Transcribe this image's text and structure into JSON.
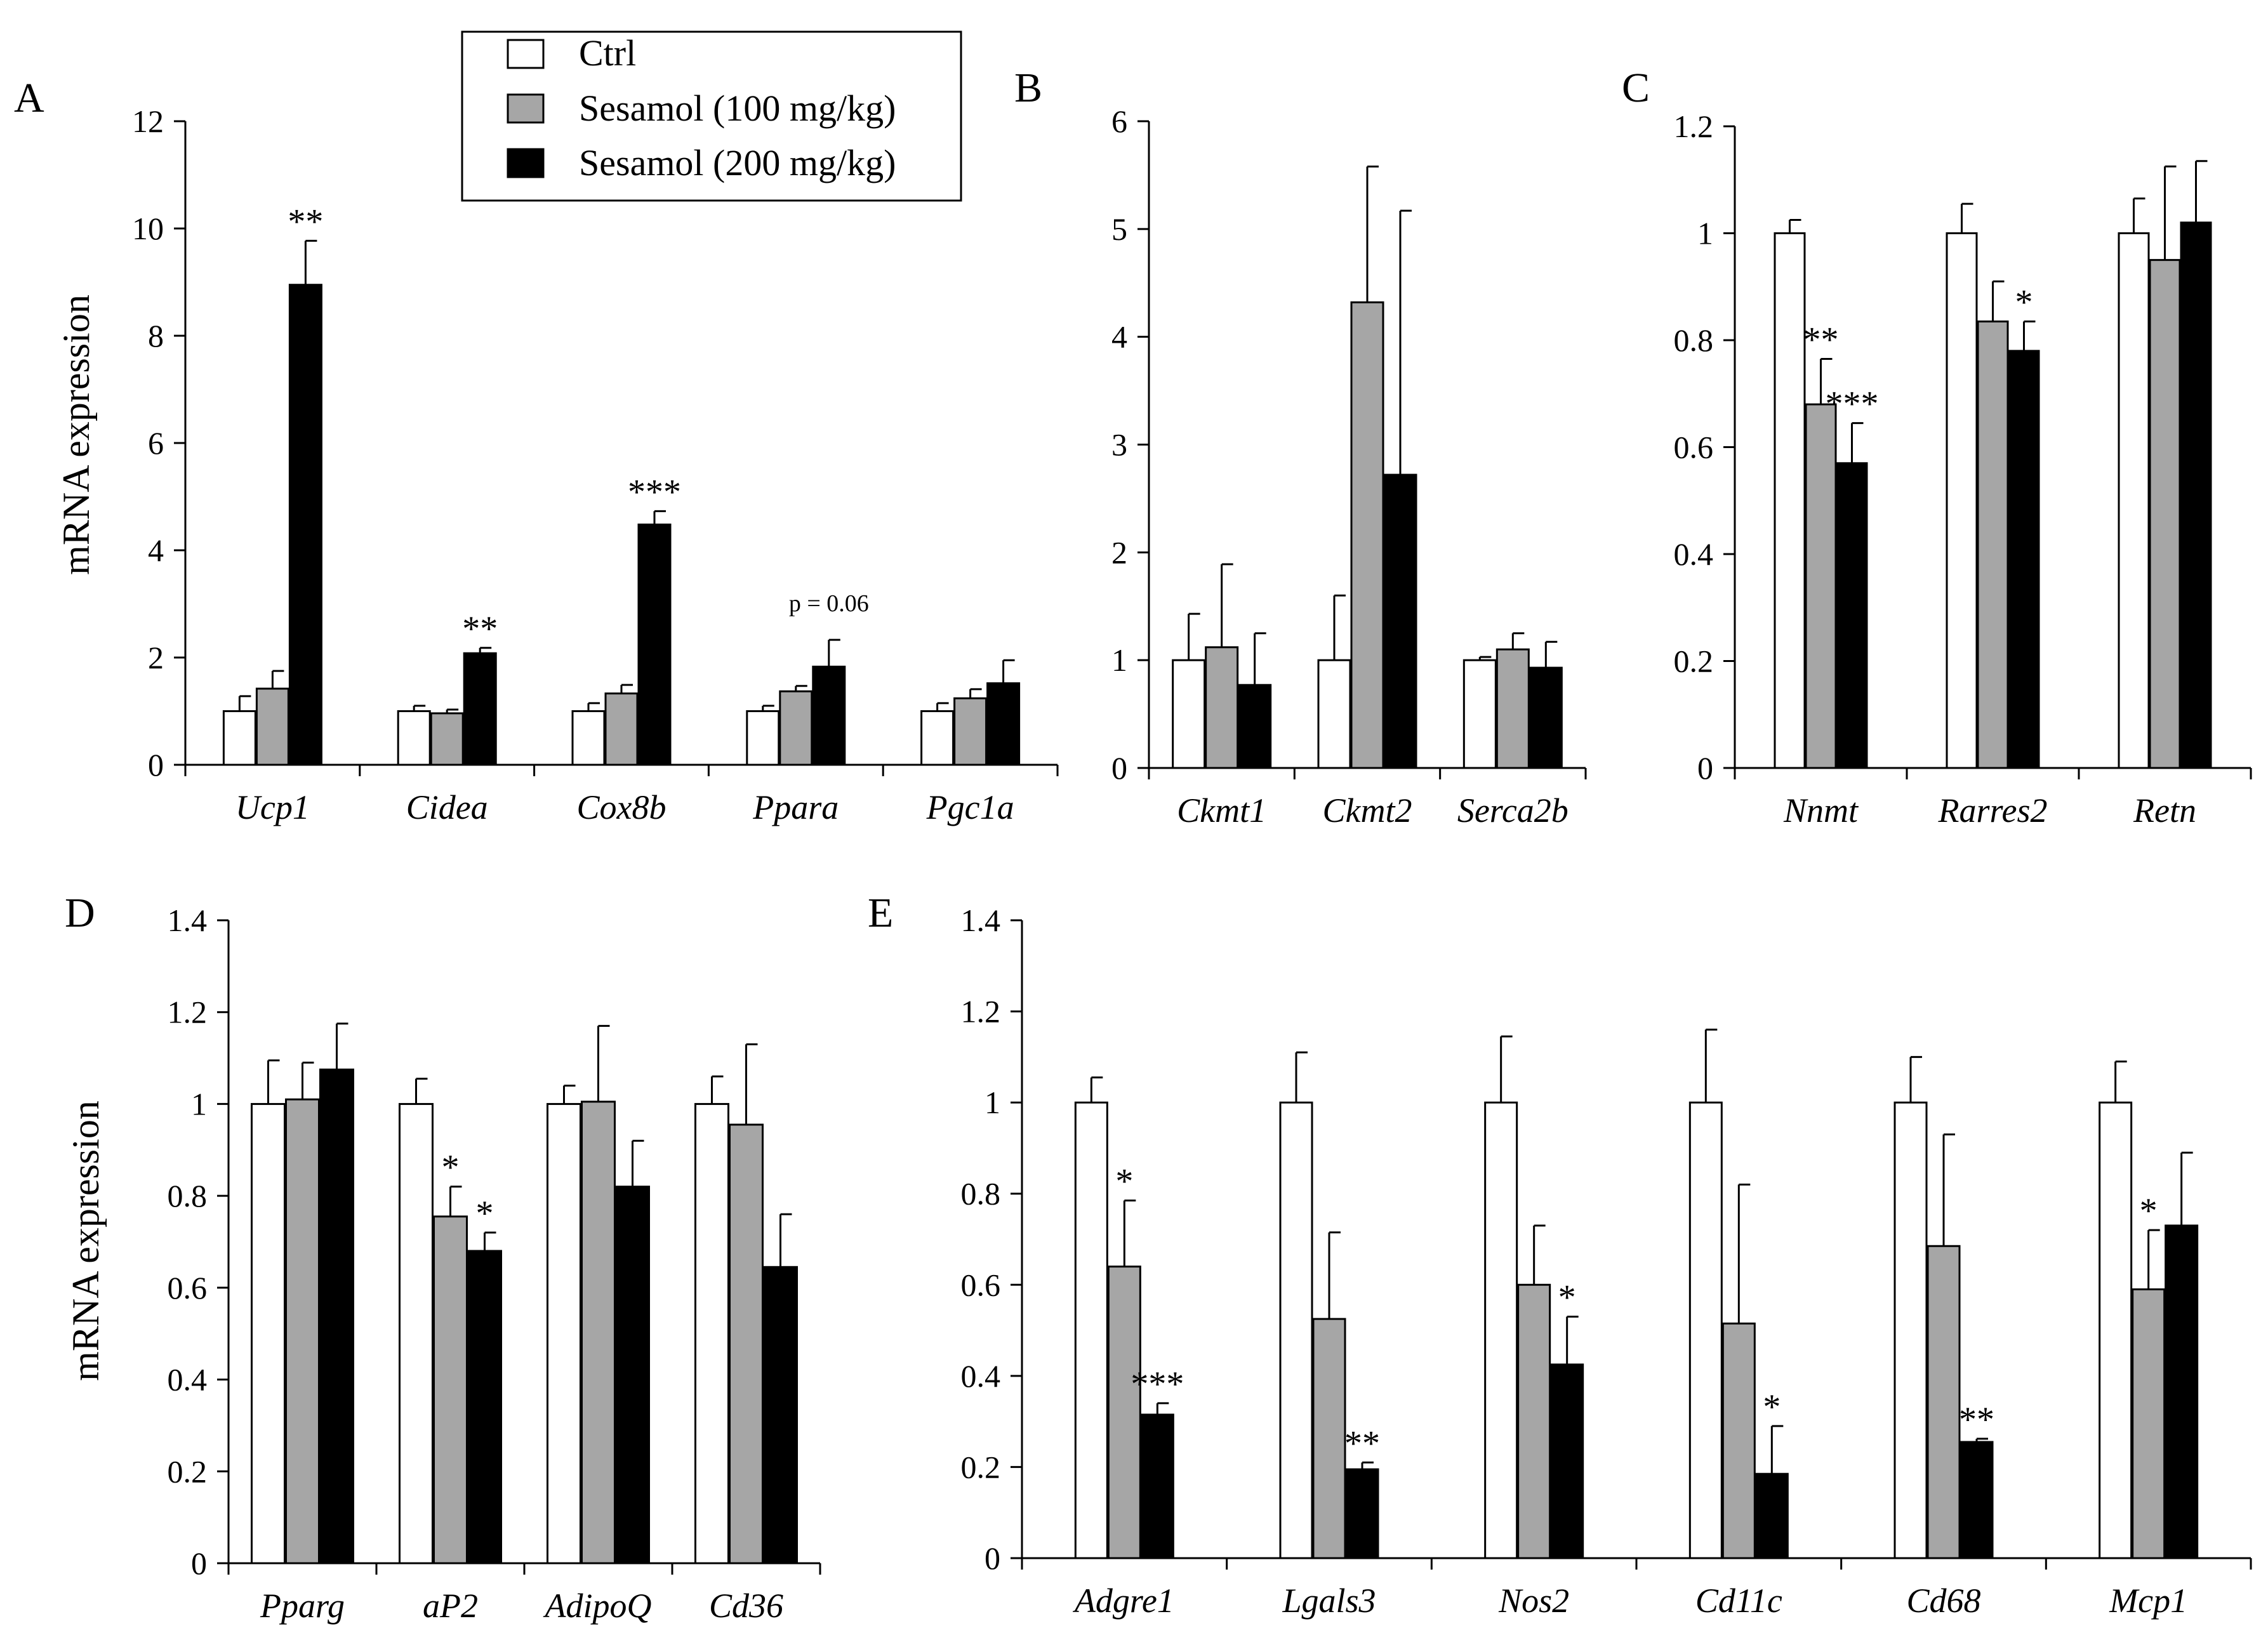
{
  "figure": {
    "ylabel": "mRNA expression",
    "legend": [
      {
        "label": "Ctrl",
        "color": "#ffffff"
      },
      {
        "label": "Sesamol (100 mg/kg)",
        "color": "#a6a6a6"
      },
      {
        "label": "Sesamol (200 mg/kg)",
        "color": "#000000"
      }
    ]
  },
  "chart_data": [
    {
      "panel": "A",
      "type": "bar",
      "ylabel": "mRNA expression",
      "ylim": [
        0,
        12
      ],
      "yticks": [
        "0",
        "2",
        "4",
        "6",
        "8",
        "10",
        "12"
      ],
      "categories": [
        "Ucp1",
        "Cidea",
        "Cox8b",
        "Ppara",
        "Pgc1a"
      ],
      "series": [
        {
          "name": "Ctrl",
          "values": [
            1.0,
            1.0,
            1.0,
            1.0,
            1.0
          ],
          "errors": [
            0.28,
            0.1,
            0.15,
            0.1,
            0.15
          ]
        },
        {
          "name": "Sesamol (100 mg/kg)",
          "values": [
            1.42,
            0.96,
            1.33,
            1.37,
            1.24
          ],
          "errors": [
            0.33,
            0.07,
            0.16,
            0.1,
            0.17
          ]
        },
        {
          "name": "Sesamol (200 mg/kg)",
          "values": [
            8.95,
            2.08,
            4.48,
            1.83,
            1.52
          ],
          "errors": [
            0.82,
            0.1,
            0.25,
            0.5,
            0.43
          ]
        }
      ],
      "annotations": [
        {
          "category": 0,
          "series": 2,
          "text": "**"
        },
        {
          "category": 1,
          "series": 2,
          "text": "**"
        },
        {
          "category": 2,
          "series": 2,
          "text": "***"
        },
        {
          "category": 3,
          "series": 2,
          "text": "p = 0.06",
          "small": true
        }
      ]
    },
    {
      "panel": "B",
      "type": "bar",
      "ylim": [
        0,
        6
      ],
      "yticks": [
        "0",
        "1",
        "2",
        "3",
        "4",
        "5",
        "6"
      ],
      "categories": [
        "Ckmt1",
        "Ckmt2",
        "Serca2b"
      ],
      "series": [
        {
          "name": "Ctrl",
          "values": [
            1.0,
            1.0,
            1.0
          ],
          "errors": [
            0.43,
            0.6,
            0.03
          ]
        },
        {
          "name": "Sesamol (100 mg/kg)",
          "values": [
            1.12,
            4.32,
            1.1
          ],
          "errors": [
            0.77,
            1.26,
            0.15
          ]
        },
        {
          "name": "Sesamol (200 mg/kg)",
          "values": [
            0.77,
            2.72,
            0.93
          ],
          "errors": [
            0.48,
            2.45,
            0.24
          ]
        }
      ],
      "annotations": []
    },
    {
      "panel": "C",
      "type": "bar",
      "ylim": [
        0,
        1.2
      ],
      "yticks": [
        "0",
        "0.2",
        "0.4",
        "0.6",
        "0.8",
        "1",
        "1.2"
      ],
      "categories": [
        "Nnmt",
        "Rarres2",
        "Retn"
      ],
      "series": [
        {
          "name": "Ctrl",
          "values": [
            1.0,
            1.0,
            1.0
          ],
          "errors": [
            0.025,
            0.055,
            0.065
          ]
        },
        {
          "name": "Sesamol (100 mg/kg)",
          "values": [
            0.68,
            0.835,
            0.95
          ],
          "errors": [
            0.085,
            0.075,
            0.175
          ]
        },
        {
          "name": "Sesamol (200 mg/kg)",
          "values": [
            0.57,
            0.78,
            1.02
          ],
          "errors": [
            0.075,
            0.055,
            0.115
          ]
        }
      ],
      "annotations": [
        {
          "category": 0,
          "series": 1,
          "text": "**"
        },
        {
          "category": 0,
          "series": 2,
          "text": "***"
        },
        {
          "category": 1,
          "series": 2,
          "text": "*"
        }
      ]
    },
    {
      "panel": "D",
      "type": "bar",
      "ylabel": "mRNA expression",
      "ylim": [
        0,
        1.4
      ],
      "yticks": [
        "0",
        "0.2",
        "0.4",
        "0.6",
        "0.8",
        "1",
        "1.2",
        "1.4"
      ],
      "categories": [
        "Pparg",
        "aP2",
        "AdipoQ",
        "Cd36"
      ],
      "series": [
        {
          "name": "Ctrl",
          "values": [
            1.0,
            1.0,
            1.0,
            1.0
          ],
          "errors": [
            0.095,
            0.055,
            0.04,
            0.06
          ]
        },
        {
          "name": "Sesamol (100 mg/kg)",
          "values": [
            1.01,
            0.755,
            1.005,
            0.955
          ],
          "errors": [
            0.08,
            0.065,
            0.165,
            0.175
          ]
        },
        {
          "name": "Sesamol (200 mg/kg)",
          "values": [
            1.075,
            0.68,
            0.82,
            0.645
          ],
          "errors": [
            0.1,
            0.04,
            0.1,
            0.115
          ]
        }
      ],
      "annotations": [
        {
          "category": 1,
          "series": 1,
          "text": "*"
        },
        {
          "category": 1,
          "series": 2,
          "text": "*"
        }
      ]
    },
    {
      "panel": "E",
      "type": "bar",
      "ylim": [
        0,
        1.4
      ],
      "yticks": [
        "0",
        "0.2",
        "0.4",
        "0.6",
        "0.8",
        "1",
        "1.2",
        "1.4"
      ],
      "categories": [
        "Adgre1",
        "Lgals3",
        "Nos2",
        "Cd11c",
        "Cd68",
        "Mcp1"
      ],
      "series": [
        {
          "name": "Ctrl",
          "values": [
            1.0,
            1.0,
            1.0,
            1.0,
            1.0,
            1.0
          ],
          "errors": [
            0.055,
            0.11,
            0.145,
            0.16,
            0.1,
            0.09
          ]
        },
        {
          "name": "Sesamol (100 mg/kg)",
          "values": [
            0.64,
            0.525,
            0.6,
            0.515,
            0.685,
            0.59
          ],
          "errors": [
            0.145,
            0.19,
            0.13,
            0.305,
            0.245,
            0.13
          ]
        },
        {
          "name": "Sesamol (200 mg/kg)",
          "values": [
            0.315,
            0.195,
            0.425,
            0.185,
            0.255,
            0.73
          ],
          "errors": [
            0.025,
            0.015,
            0.105,
            0.105,
            0.007,
            0.16
          ]
        }
      ],
      "annotations": [
        {
          "category": 0,
          "series": 1,
          "text": "*"
        },
        {
          "category": 0,
          "series": 2,
          "text": "***"
        },
        {
          "category": 1,
          "series": 2,
          "text": "**"
        },
        {
          "category": 2,
          "series": 2,
          "text": "*"
        },
        {
          "category": 3,
          "series": 2,
          "text": "*"
        },
        {
          "category": 4,
          "series": 2,
          "text": "**"
        },
        {
          "category": 5,
          "series": 1,
          "text": "*"
        }
      ]
    }
  ]
}
